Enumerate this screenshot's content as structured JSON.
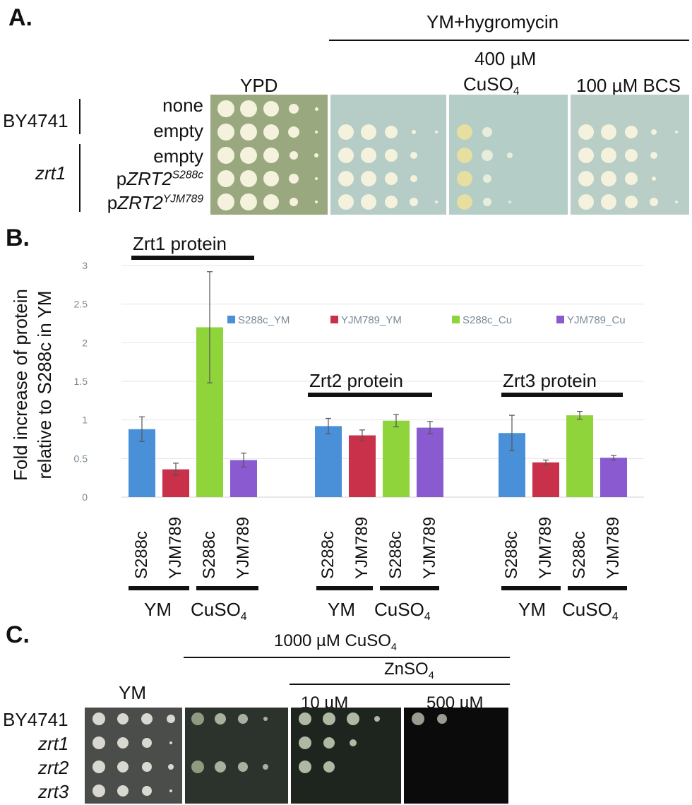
{
  "panel_a": {
    "label": "A.",
    "header_group": "YM+hygromycin",
    "col_ypd": "YPD",
    "col_cu_line1": "400 µM",
    "col_cu_line2": "CuSO",
    "col_cu_sub": "4",
    "col_bcs": "100 µM BCS",
    "group_by4741": "BY4741",
    "group_zrt1": "zrt1",
    "rows": [
      "none",
      "empty",
      "empty"
    ],
    "row4_prefix": "p",
    "row4_gene": "ZRT2",
    "row4_sup": "S288c",
    "row5_prefix": "p",
    "row5_gene": "ZRT2",
    "row5_sup": "YJM789"
  },
  "panel_b": {
    "label": "B.",
    "ylabel_line1": "Fold increase of protein",
    "ylabel_line2": "relative to S288c in YM",
    "group_titles": [
      "Zrt1 protein",
      "Zrt2 protein",
      "Zrt3 protein"
    ],
    "xtick_s288c": "S288c",
    "xtick_yjm": "YJM789",
    "cond_ym": "YM",
    "cond_cu": "CuSO",
    "cond_cu_sub": "4"
  },
  "chart_data": {
    "type": "bar",
    "groups": [
      "Zrt1 protein",
      "Zrt2 protein",
      "Zrt3 protein"
    ],
    "series": [
      {
        "name": "S288c_YM",
        "color": "#4a90d9",
        "values": [
          0.88,
          0.92,
          0.83
        ],
        "errors": [
          0.16,
          0.1,
          0.23
        ]
      },
      {
        "name": "YJM789_YM",
        "color": "#c9304a",
        "values": [
          0.36,
          0.8,
          0.45
        ],
        "errors": [
          0.08,
          0.07,
          0.03
        ]
      },
      {
        "name": "S288c_Cu",
        "color": "#8fd43a",
        "values": [
          2.2,
          0.99,
          1.06
        ],
        "errors": [
          0.72,
          0.08,
          0.05
        ]
      },
      {
        "name": "YJM789_Cu",
        "color": "#8a5ad0",
        "values": [
          0.48,
          0.9,
          0.51
        ],
        "errors": [
          0.09,
          0.08,
          0.03
        ]
      }
    ],
    "yticks": [
      "0",
      "0.5",
      "1",
      "1.5",
      "2",
      "2.5",
      "3"
    ],
    "ylim": [
      0,
      3
    ],
    "legend_position": "top-right",
    "grid": true
  },
  "panel_c": {
    "label": "C.",
    "header_cu": "1000 µM CuSO",
    "header_cu_sub": "4",
    "header_zn": "ZnSO",
    "header_zn_sub": "4",
    "col_ym": "YM",
    "col_10": "10 µM",
    "col_500": "500 µM",
    "rows": [
      "BY4741",
      "zrt1",
      "zrt2",
      "zrt3"
    ]
  }
}
